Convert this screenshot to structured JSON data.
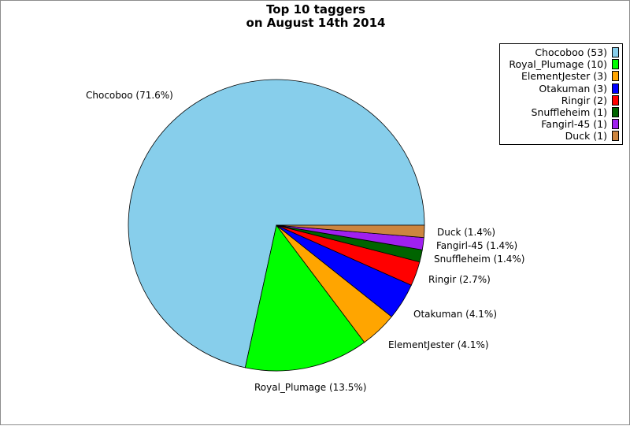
{
  "title_line1": "Top 10 taggers",
  "title_line2": "on August 14th 2014",
  "chart_data": {
    "type": "pie",
    "title": "Top 10 taggers on August 14th 2014",
    "slices": [
      {
        "name": "Chocoboo",
        "value": 53,
        "percent": "71.6%",
        "color": "#87ceeb"
      },
      {
        "name": "Royal_Plumage",
        "value": 10,
        "percent": "13.5%",
        "color": "#00ff00"
      },
      {
        "name": "ElementJester",
        "value": 3,
        "percent": "4.1%",
        "color": "#ffa500"
      },
      {
        "name": "Otakuman",
        "value": 3,
        "percent": "4.1%",
        "color": "#0000ff"
      },
      {
        "name": "Ringir",
        "value": 2,
        "percent": "2.7%",
        "color": "#ff0000"
      },
      {
        "name": "Snuffleheim",
        "value": 1,
        "percent": "1.4%",
        "color": "#006400"
      },
      {
        "name": "Fangirl-45",
        "value": 1,
        "percent": "1.4%",
        "color": "#a020f0"
      },
      {
        "name": "Duck",
        "value": 1,
        "percent": "1.4%",
        "color": "#cd853f"
      }
    ],
    "legend_placement": "top-right"
  }
}
